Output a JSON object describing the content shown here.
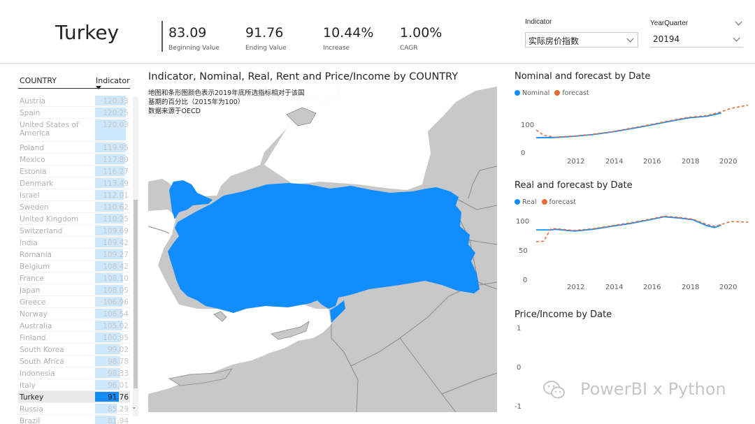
{
  "header": {
    "country": "Turkey",
    "kpis": [
      {
        "value": "83.09",
        "label": "Beginning Value"
      },
      {
        "value": "91.76",
        "label": "Ending Value"
      },
      {
        "value": "10.44%",
        "label": "Increase"
      },
      {
        "value": "1.00%",
        "label": "CAGR"
      }
    ],
    "indicator_slicer": {
      "title": "Indicator",
      "value": "实际房价指数"
    },
    "quarter_slicer": {
      "title": "YearQuarter",
      "value": "20194"
    }
  },
  "table": {
    "col_country": "COUNTRY",
    "col_indicator": "Indicator",
    "max_value": 125,
    "rows": [
      {
        "country": "Austria",
        "value": "120.33"
      },
      {
        "country": "Spain",
        "value": "120.25"
      },
      {
        "country": "United States of America",
        "value": "120.03"
      },
      {
        "country": "Poland",
        "value": "119.95"
      },
      {
        "country": "Mexico",
        "value": "117.89"
      },
      {
        "country": "Estonia",
        "value": "116.27"
      },
      {
        "country": "Denmark",
        "value": "113.49"
      },
      {
        "country": "Israel",
        "value": "112.01"
      },
      {
        "country": "Sweden",
        "value": "110.62"
      },
      {
        "country": "United Kingdom",
        "value": "110.25"
      },
      {
        "country": "Switzerland",
        "value": "109.69"
      },
      {
        "country": "India",
        "value": "109.42"
      },
      {
        "country": "Romania",
        "value": "109.27"
      },
      {
        "country": "Belgium",
        "value": "108.42"
      },
      {
        "country": "France",
        "value": "108.10"
      },
      {
        "country": "Japan",
        "value": "108.05"
      },
      {
        "country": "Greece",
        "value": "106.96"
      },
      {
        "country": "Norway",
        "value": "106.54"
      },
      {
        "country": "Australia",
        "value": "105.02"
      },
      {
        "country": "Finland",
        "value": "100.95"
      },
      {
        "country": "South Korea",
        "value": "99.02"
      },
      {
        "country": "South Africa",
        "value": "98.78"
      },
      {
        "country": "Indonesia",
        "value": "98.33"
      },
      {
        "country": "Italy",
        "value": "96.01"
      },
      {
        "country": "Turkey",
        "value": "91.76",
        "selected": true
      },
      {
        "country": "Russia",
        "value": "85.29"
      },
      {
        "country": "Brazil",
        "value": "81.94"
      }
    ]
  },
  "map": {
    "title": "Indicator, Nominal, Real, Rent and Price/Income by COUNTRY",
    "note_lines": [
      "地图和条形图颜色表示2019年底所选指标相对于该国",
      "基期的百分比（2015年为100）",
      "数据来源于OECD"
    ],
    "highlight_color": "#118dff",
    "land_color": "#c8c8c8",
    "border_color": "#8a8a8a"
  },
  "charts": {
    "nominal": {
      "title": "Nominal and forecast by Date",
      "legend": [
        "Nominal",
        "forecast"
      ],
      "y_ticks": [
        "100",
        "0"
      ],
      "x_ticks": [
        "2012",
        "2014",
        "2016",
        "2018",
        "2020"
      ]
    },
    "real": {
      "title": "Real and forecast by Date",
      "legend": [
        "Real",
        "forecast"
      ],
      "y_ticks": [
        "100",
        "50",
        "0"
      ],
      "x_ticks": [
        "2012",
        "2014",
        "2016",
        "2018",
        "2020"
      ]
    },
    "price_income": {
      "title": "Price/Income by Date",
      "y_ticks": [
        "1",
        "0",
        "-1"
      ]
    },
    "colors": {
      "actual": "#118dff",
      "forecast": "#e66c37"
    }
  },
  "chart_data": [
    {
      "type": "line",
      "title": "Nominal and forecast by Date",
      "x_range": [
        2010,
        2021.2
      ],
      "ylim": [
        0,
        175
      ],
      "series": [
        {
          "name": "Nominal",
          "x": [
            2010.0,
            2011.0,
            2012.0,
            2013.0,
            2014.0,
            2015.0,
            2016.0,
            2017.0,
            2018.0,
            2019.0,
            2019.75
          ],
          "values": [
            57,
            58,
            62,
            68,
            77,
            88,
            100,
            113,
            125,
            131,
            142
          ]
        },
        {
          "name": "forecast",
          "x": [
            2010.0,
            2010.4,
            2011.0,
            2012.0,
            2013.0,
            2014.0,
            2015.0,
            2016.0,
            2017.0,
            2018.0,
            2019.0,
            2019.75,
            2020.25,
            2021.2
          ],
          "values": [
            84,
            65,
            59,
            63,
            69,
            78,
            90,
            102,
            115,
            127,
            133,
            146,
            158,
            169
          ]
        }
      ]
    },
    {
      "type": "line",
      "title": "Real and forecast by Date",
      "x_range": [
        2010,
        2021.2
      ],
      "ylim": [
        0,
        110
      ],
      "series": [
        {
          "name": "Real",
          "x": [
            2010.0,
            2010.75,
            2011.0,
            2012.0,
            2013.0,
            2014.0,
            2015.0,
            2016.0,
            2016.75,
            2017.5,
            2018.25,
            2019.0,
            2019.4,
            2019.75
          ],
          "values": [
            83,
            83,
            84,
            81,
            84,
            89,
            94,
            100,
            105,
            103,
            100,
            90,
            87,
            91
          ]
        },
        {
          "name": "forecast",
          "x": [
            2010.0,
            2010.4,
            2010.75,
            2011.0,
            2012.0,
            2013.0,
            2014.0,
            2015.0,
            2016.0,
            2016.75,
            2017.5,
            2018.25,
            2019.0,
            2019.4,
            2019.75,
            2020.25,
            2021.2
          ],
          "values": [
            63,
            64,
            84,
            85,
            82,
            85,
            90,
            95,
            101,
            106,
            104,
            101,
            92,
            89,
            92,
            97,
            96
          ]
        }
      ]
    },
    {
      "type": "line",
      "title": "Price/Income by Date",
      "ylim": [
        -1,
        1
      ],
      "series": []
    }
  ],
  "watermark": "PowerBI x Python"
}
